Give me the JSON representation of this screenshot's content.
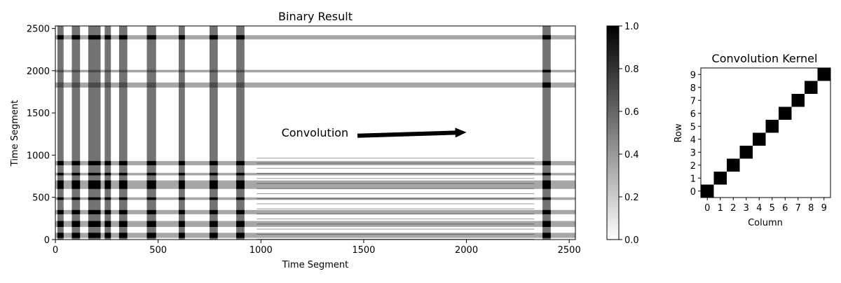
{
  "chart_data": [
    {
      "type": "heatmap",
      "title": "Binary Result",
      "xlabel": "Time Segment",
      "ylabel": "Time Segment",
      "xlim": [
        0,
        2530
      ],
      "ylim": [
        0,
        2530
      ],
      "xticks": [
        0,
        500,
        1000,
        1500,
        2000,
        2500
      ],
      "yticks": [
        0,
        500,
        1000,
        1500,
        2000,
        2500
      ],
      "grid": false,
      "colormap": "gray_r (0 white → 1 black)",
      "annotation": {
        "text": "Convolution",
        "x": 1100,
        "y": 1270,
        "arrow_from": [
          1470,
          1230
        ],
        "arrow_to": [
          2000,
          1270
        ]
      },
      "dense_columns": [
        [
          10,
          40
        ],
        [
          80,
          120
        ],
        [
          160,
          220
        ],
        [
          240,
          270
        ],
        [
          310,
          350
        ],
        [
          445,
          490
        ],
        [
          600,
          630
        ],
        [
          750,
          790
        ],
        [
          880,
          920
        ],
        [
          2370,
          2410
        ]
      ],
      "dense_rows": [
        [
          2370,
          2420
        ],
        [
          1980,
          2010
        ],
        [
          1800,
          1860
        ],
        [
          880,
          930
        ],
        [
          760,
          790
        ],
        [
          600,
          700
        ],
        [
          470,
          500
        ],
        [
          300,
          350
        ],
        [
          150,
          220
        ],
        [
          20,
          80
        ]
      ],
      "regions": [
        {
          "x": [
            0,
            980
          ],
          "y": [
            0,
            1100
          ],
          "value": 1
        },
        {
          "x": [
            0,
            980
          ],
          "y": [
            1950,
            2050
          ],
          "value": 1
        },
        {
          "x": [
            980,
            2330
          ],
          "y": [
            0,
            1000
          ],
          "value": 0.4
        },
        {
          "x": [
            1750,
            2010
          ],
          "y": [
            1970,
            2010
          ],
          "value": 1
        },
        {
          "x": [
            2360,
            2420
          ],
          "y": [
            0,
            2530
          ],
          "value": 1
        }
      ]
    },
    {
      "type": "colorbar",
      "ylim": [
        0.0,
        1.0
      ],
      "ticks": [
        "0.0",
        "0.2",
        "0.4",
        "0.6",
        "0.8",
        "1.0"
      ]
    },
    {
      "type": "heatmap",
      "title": "Convolution Kernel",
      "xlabel": "Column",
      "ylabel": "Row",
      "xticks": [
        "0",
        "1",
        "2",
        "3",
        "4",
        "5",
        "6",
        "7",
        "8",
        "9"
      ],
      "yticks": [
        "0",
        "1",
        "2",
        "3",
        "4",
        "5",
        "6",
        "7",
        "8",
        "9"
      ],
      "size": 10,
      "ones": [
        [
          0,
          0
        ],
        [
          1,
          1
        ],
        [
          2,
          2
        ],
        [
          3,
          3
        ],
        [
          4,
          4
        ],
        [
          5,
          5
        ],
        [
          6,
          6
        ],
        [
          7,
          7
        ],
        [
          8,
          8
        ],
        [
          9,
          9
        ]
      ]
    }
  ]
}
